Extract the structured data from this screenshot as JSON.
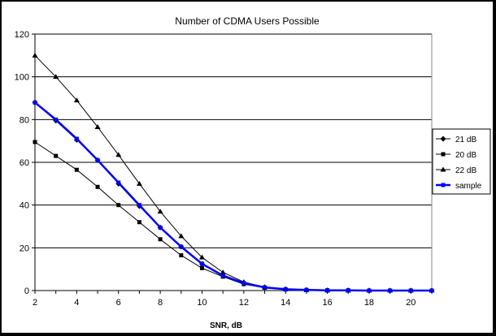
{
  "chart_data": {
    "type": "line",
    "title": "Number of CDMA Users Possible",
    "xlabel": "SNR, dB",
    "ylabel": "",
    "xlim": [
      2,
      21
    ],
    "ylim": [
      0,
      120
    ],
    "x_ticks": [
      2,
      4,
      6,
      8,
      10,
      12,
      14,
      16,
      18,
      20
    ],
    "y_ticks": [
      0,
      20,
      40,
      60,
      80,
      100,
      120
    ],
    "grid": "horizontal",
    "legend_position": "right",
    "x": [
      2,
      3,
      4,
      5,
      6,
      7,
      8,
      9,
      10,
      11,
      12,
      13,
      14,
      15,
      16,
      17,
      18,
      19,
      20,
      21
    ],
    "series": [
      {
        "name": "21 dB",
        "marker": "diamond",
        "color": "#000000",
        "values": [
          88,
          79.5,
          70.5,
          61,
          50,
          39.5,
          29.5,
          20.5,
          12.5,
          7,
          3.5,
          1.5,
          0.6,
          0.3,
          0.1,
          0.1,
          0,
          0,
          0,
          0
        ]
      },
      {
        "name": "20 dB",
        "marker": "square",
        "color": "#000000",
        "values": [
          69.5,
          63,
          56.5,
          48.5,
          40,
          32,
          24,
          16.5,
          10.5,
          6.5,
          3,
          1.3,
          0.5,
          0.2,
          0.1,
          0,
          0,
          0,
          0,
          0
        ]
      },
      {
        "name": "22 dB",
        "marker": "triangle",
        "color": "#000000",
        "values": [
          110,
          100,
          89,
          76.5,
          63.5,
          50,
          37,
          25.5,
          15.5,
          8.5,
          4,
          1.6,
          0.7,
          0.3,
          0.1,
          0,
          0,
          0,
          0,
          0
        ]
      },
      {
        "name": "sample",
        "marker": "square",
        "color": "#0000ff",
        "values": [
          88,
          80,
          71,
          61,
          50.5,
          40,
          29.5,
          20.5,
          12.5,
          7,
          3.5,
          1.5,
          0.6,
          0.3,
          0.1,
          0.1,
          0,
          0,
          0,
          0
        ]
      }
    ]
  }
}
